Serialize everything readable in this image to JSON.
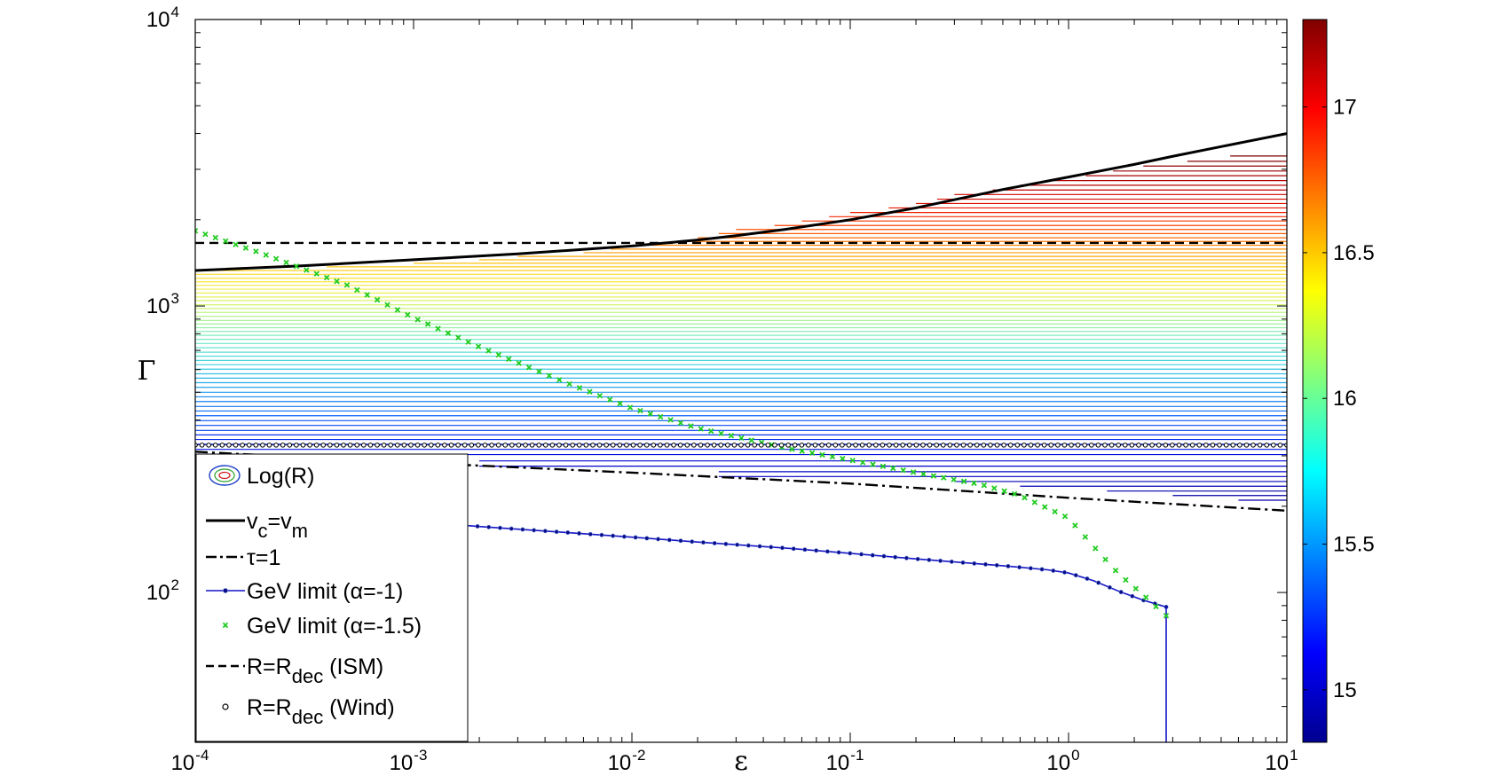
{
  "chart_data": {
    "type": "line",
    "xlabel": "ε",
    "ylabel": "Γ",
    "xscale": "log",
    "yscale": "log",
    "xlim": [
      0.0001,
      10
    ],
    "ylim": [
      30,
      10000
    ],
    "x_ticks": [
      {
        "value": 0.0001,
        "base": "10",
        "exp": "-4"
      },
      {
        "value": 0.001,
        "base": "10",
        "exp": "-3"
      },
      {
        "value": 0.01,
        "base": "10",
        "exp": "-2"
      },
      {
        "value": 0.1,
        "base": "10",
        "exp": "-1"
      },
      {
        "value": 1,
        "base": "10",
        "exp": "0"
      },
      {
        "value": 10,
        "base": "10",
        "exp": "1"
      }
    ],
    "y_ticks": [
      {
        "value": 100,
        "base": "10",
        "exp": "2"
      },
      {
        "value": 1000,
        "base": "10",
        "exp": "3"
      },
      {
        "value": 10000,
        "base": "10",
        "exp": "4"
      }
    ],
    "grid": false,
    "legend_position": "bottom-left",
    "colorbar": {
      "range": [
        14.82,
        17.3
      ],
      "ticks": [
        15,
        15.5,
        16,
        16.5,
        17
      ],
      "tick_labels": [
        "15",
        "15.5",
        "16",
        "16.5",
        "17"
      ],
      "colormap": "jet"
    },
    "contour": {
      "name": "Log(R)",
      "levels": [
        {
          "y": 1330,
          "x_start": 0.0001,
          "color": "#ffd11a"
        },
        {
          "y": 1290,
          "x_start": 0.0001,
          "color": "#fed826"
        },
        {
          "y": 1250,
          "x_start": 0.0001,
          "color": "#fde02c"
        },
        {
          "y": 1215,
          "x_start": 0.0001,
          "color": "#fbe635"
        },
        {
          "y": 1180,
          "x_start": 0.0001,
          "color": "#f8ea3e"
        },
        {
          "y": 1145,
          "x_start": 0.0001,
          "color": "#f2ee48"
        },
        {
          "y": 1110,
          "x_start": 0.0001,
          "color": "#ecf152"
        },
        {
          "y": 1075,
          "x_start": 0.0001,
          "color": "#e4f35c"
        },
        {
          "y": 1045,
          "x_start": 0.0001,
          "color": "#dbf466"
        },
        {
          "y": 1010,
          "x_start": 0.0001,
          "color": "#d2f570"
        },
        {
          "y": 980,
          "x_start": 0.0001,
          "color": "#c8f57a"
        },
        {
          "y": 950,
          "x_start": 0.0001,
          "color": "#bef584"
        },
        {
          "y": 920,
          "x_start": 0.0001,
          "color": "#b4f48e"
        },
        {
          "y": 890,
          "x_start": 0.0001,
          "color": "#aaf398"
        },
        {
          "y": 865,
          "x_start": 0.0001,
          "color": "#a0f2a2"
        },
        {
          "y": 840,
          "x_start": 0.0001,
          "color": "#96f1ac"
        },
        {
          "y": 815,
          "x_start": 0.0001,
          "color": "#8cefb6"
        },
        {
          "y": 790,
          "x_start": 0.0001,
          "color": "#82edbf"
        },
        {
          "y": 765,
          "x_start": 0.0001,
          "color": "#78ebc6"
        },
        {
          "y": 740,
          "x_start": 0.0001,
          "color": "#6ee8cc"
        },
        {
          "y": 715,
          "x_start": 0.0001,
          "color": "#64e5d2"
        },
        {
          "y": 690,
          "x_start": 0.0001,
          "color": "#5ae1d6"
        },
        {
          "y": 668,
          "x_start": 0.0001,
          "color": "#50dcda"
        },
        {
          "y": 646,
          "x_start": 0.0001,
          "color": "#46d6de"
        },
        {
          "y": 624,
          "x_start": 0.0001,
          "color": "#3ecfe1"
        },
        {
          "y": 602,
          "x_start": 0.0001,
          "color": "#38c7e4"
        },
        {
          "y": 580,
          "x_start": 0.0001,
          "color": "#32bfe7"
        },
        {
          "y": 560,
          "x_start": 0.0001,
          "color": "#2cb6ea"
        },
        {
          "y": 540,
          "x_start": 0.0001,
          "color": "#27acec"
        },
        {
          "y": 520,
          "x_start": 0.0001,
          "color": "#22a2ee"
        },
        {
          "y": 500,
          "x_start": 0.0001,
          "color": "#1e98f0"
        },
        {
          "y": 482,
          "x_start": 0.0001,
          "color": "#1a8df2"
        },
        {
          "y": 464,
          "x_start": 0.0001,
          "color": "#1682f3"
        },
        {
          "y": 446,
          "x_start": 0.0001,
          "color": "#1277f4"
        },
        {
          "y": 430,
          "x_start": 0.0001,
          "color": "#0f6cf5"
        },
        {
          "y": 414,
          "x_start": 0.0001,
          "color": "#0c61f5"
        },
        {
          "y": 398,
          "x_start": 0.0001,
          "color": "#0a56f5"
        },
        {
          "y": 383,
          "x_start": 0.0001,
          "color": "#084bf4"
        },
        {
          "y": 368,
          "x_start": 0.0001,
          "color": "#0640f2"
        },
        {
          "y": 355,
          "x_start": 0.0001,
          "color": "#0536f0"
        },
        {
          "y": 342,
          "x_start": 0.0001,
          "color": "#042ced"
        },
        {
          "y": 329,
          "x_start": 0.0001,
          "color": "#0322e9"
        },
        {
          "y": 316,
          "x_start": 0.0001,
          "color": "#0218e4"
        },
        {
          "y": 303,
          "x_start": 0.0001,
          "color": "#010fdd"
        },
        {
          "y": 288,
          "x_start": 0.002,
          "color": "#0008d6"
        },
        {
          "y": 276,
          "x_start": 0.002,
          "color": "#0004cf"
        },
        {
          "y": 264,
          "x_start": 0.025,
          "color": "#0002c8"
        },
        {
          "y": 254,
          "x_start": 0.025,
          "color": "#0000c2"
        },
        {
          "y": 244,
          "x_start": 0.3,
          "color": "#0000bc"
        },
        {
          "y": 235,
          "x_start": 0.6,
          "color": "#0000b6"
        },
        {
          "y": 226,
          "x_start": 1.5,
          "color": "#0000b0"
        },
        {
          "y": 218,
          "x_start": 3,
          "color": "#0000aa"
        },
        {
          "y": 210,
          "x_start": 6,
          "color": "#0000a4"
        },
        {
          "y": 1370,
          "x_start": 0.0004,
          "color": "#ffca14"
        },
        {
          "y": 1410,
          "x_start": 0.001,
          "color": "#ffc00f"
        },
        {
          "y": 1450,
          "x_start": 0.002,
          "color": "#ffb60b"
        },
        {
          "y": 1490,
          "x_start": 0.003,
          "color": "#ffaa08"
        },
        {
          "y": 1535,
          "x_start": 0.006,
          "color": "#ff9e06"
        },
        {
          "y": 1580,
          "x_start": 0.008,
          "color": "#ff9204"
        },
        {
          "y": 1630,
          "x_start": 0.012,
          "color": "#ff8503"
        },
        {
          "y": 1680,
          "x_start": 0.016,
          "color": "#ff7802"
        },
        {
          "y": 1730,
          "x_start": 0.02,
          "color": "#ff6b01"
        },
        {
          "y": 1790,
          "x_start": 0.025,
          "color": "#ff5e01"
        },
        {
          "y": 1850,
          "x_start": 0.03,
          "color": "#ff5000"
        },
        {
          "y": 1910,
          "x_start": 0.045,
          "color": "#fd4300"
        },
        {
          "y": 1980,
          "x_start": 0.06,
          "color": "#fa3600"
        },
        {
          "y": 2050,
          "x_start": 0.08,
          "color": "#f52b00"
        },
        {
          "y": 2120,
          "x_start": 0.1,
          "color": "#ef2100"
        },
        {
          "y": 2200,
          "x_start": 0.15,
          "color": "#e81800"
        },
        {
          "y": 2280,
          "x_start": 0.2,
          "color": "#e01100"
        },
        {
          "y": 2360,
          "x_start": 0.25,
          "color": "#d70b00"
        },
        {
          "y": 2450,
          "x_start": 0.3,
          "color": "#ce0600"
        },
        {
          "y": 2540,
          "x_start": 0.45,
          "color": "#c50300"
        },
        {
          "y": 2640,
          "x_start": 0.6,
          "color": "#bb0100"
        },
        {
          "y": 2740,
          "x_start": 0.8,
          "color": "#b10000"
        },
        {
          "y": 2850,
          "x_start": 1.2,
          "color": "#a70000"
        },
        {
          "y": 2960,
          "x_start": 1.6,
          "color": "#9d0000"
        },
        {
          "y": 3080,
          "x_start": 2.2,
          "color": "#930000"
        },
        {
          "y": 3200,
          "x_start": 3.5,
          "color": "#890000"
        },
        {
          "y": 3340,
          "x_start": 5.5,
          "color": "#800000"
        }
      ]
    },
    "series": [
      {
        "name": "v_c=v_m",
        "style": "solid",
        "color": "#000000",
        "x": [
          0.0001,
          0.0003,
          0.001,
          0.003,
          0.01,
          0.02,
          0.03,
          0.05,
          0.1,
          0.2,
          0.3,
          0.5,
          1,
          2,
          3,
          5,
          10
        ],
        "y": [
          1330,
          1380,
          1450,
          1520,
          1620,
          1700,
          1760,
          1850,
          2000,
          2200,
          2350,
          2550,
          2820,
          3120,
          3330,
          3600,
          4000
        ]
      },
      {
        "name": "τ=1",
        "style": "dashdot",
        "color": "#000000",
        "x": [
          0.0001,
          0.001,
          0.01,
          0.1,
          1,
          10
        ],
        "y": [
          310,
          284,
          262,
          240,
          214,
          193
        ]
      },
      {
        "name": "GeV limit (α=-1)",
        "style": "line-dots",
        "color": "#1414c8",
        "x": [
          0.0001,
          0.0003,
          0.001,
          0.002,
          0.005,
          0.01,
          0.02,
          0.05,
          0.1,
          0.2,
          0.5,
          0.8,
          1,
          1.3,
          1.7,
          2.2,
          2.8
        ],
        "y": [
          205,
          192,
          177,
          170,
          162,
          156,
          150,
          143,
          137,
          131,
          124,
          120,
          117,
          110,
          101,
          94,
          89
        ]
      },
      {
        "name": "GeV limit (α=-1.5)",
        "style": "x-markers",
        "color": "#22cc22",
        "x": [
          0.0001,
          0.0002,
          0.0005,
          0.001,
          0.002,
          0.005,
          0.01,
          0.02,
          0.05,
          0.1,
          0.2,
          0.4,
          0.6,
          1,
          1.3,
          1.7,
          2.2,
          2.8
        ],
        "y": [
          1830,
          1530,
          1180,
          910,
          720,
          540,
          440,
          375,
          320,
          290,
          262,
          238,
          218,
          182,
          145,
          116,
          98,
          83
        ]
      },
      {
        "name": "R=R_dec (ISM)",
        "style": "dashed",
        "color": "#000000",
        "x": [
          0.0001,
          10
        ],
        "y": [
          1660,
          1660
        ]
      },
      {
        "name": "R=R_dec (Wind)",
        "style": "o-markers",
        "color": "#000000",
        "x": [
          0.0001,
          10
        ],
        "y": [
          327,
          327
        ]
      }
    ],
    "cutoff": {
      "x": 2.8,
      "y_top": 89,
      "y_bottom": 30,
      "color": "#1414c8"
    },
    "legend": [
      {
        "key": "contour",
        "label": "Log(R)"
      },
      {
        "key": "solid",
        "label": "v",
        "sub1": "c",
        "mid": "=v",
        "sub2": "m",
        "tail": ""
      },
      {
        "key": "dashdot",
        "label": "τ=1"
      },
      {
        "key": "bluedot",
        "label": "GeV limit (α=-1)"
      },
      {
        "key": "greenx",
        "label": "GeV limit (α=-1.5)"
      },
      {
        "key": "dashed",
        "label": "R=R",
        "sub1": "dec",
        "tail": " (ISM)"
      },
      {
        "key": "circle",
        "label": "R=R",
        "sub1": "dec",
        "tail": " (Wind)"
      }
    ]
  }
}
